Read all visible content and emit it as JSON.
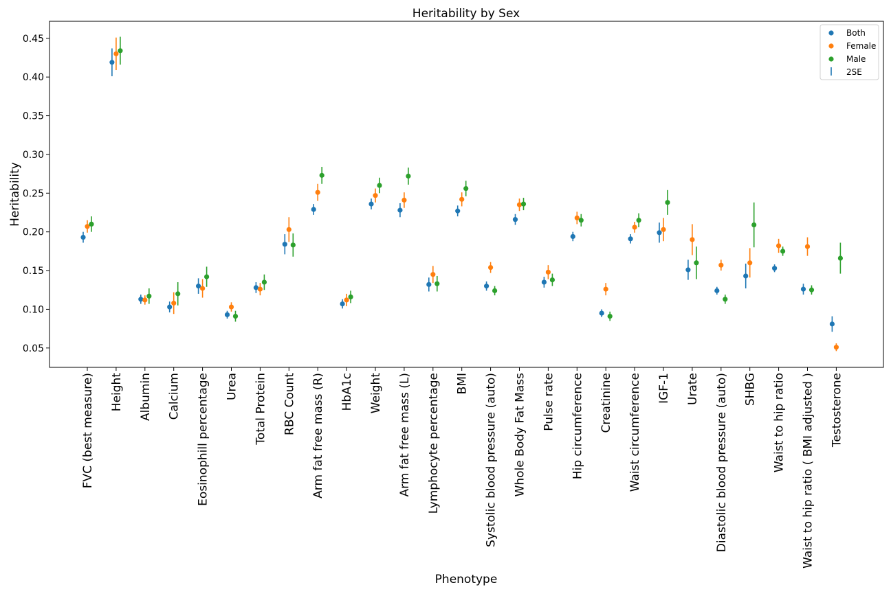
{
  "chart_data": {
    "type": "scatter",
    "title": "Heritability by Sex",
    "xlabel": "Phenotype",
    "ylabel": "Heritability",
    "ylim": [
      0.025,
      0.472
    ],
    "yticks": [
      "0.05",
      "0.10",
      "0.15",
      "0.20",
      "0.25",
      "0.30",
      "0.35",
      "0.40",
      "0.45"
    ],
    "grid": false,
    "legend_position": "top-right",
    "error_bar_legend": "2SE",
    "categories": [
      "FVC (best measure)",
      "Height",
      "Albumin",
      "Calcium",
      "Eosinophill percentage",
      "Urea",
      "Total Protein",
      "RBC Count",
      "Arm fat free mass (R)",
      "HbA1c",
      "Weight",
      "Arm fat free mass (L)",
      "Lymphocyte percentage",
      "BMI",
      "Systolic blood pressure (auto)",
      "Whole Body Fat Mass",
      "Pulse rate",
      "Hip circumference",
      "Creatinine",
      "Waist circumference",
      "IGF-1",
      "Urate",
      "Diastolic blood pressure (auto)",
      "SHBG",
      "Waist to hip ratio",
      "Waist to hip ratio ( BMI adjusted )",
      "Testosterone"
    ],
    "series": [
      {
        "name": "Both",
        "color": "#1f77b4",
        "values": [
          0.193,
          0.419,
          0.113,
          0.103,
          0.13,
          0.093,
          0.128,
          0.184,
          0.229,
          0.107,
          0.236,
          0.228,
          0.132,
          0.227,
          0.13,
          0.216,
          0.135,
          0.194,
          0.095,
          0.191,
          0.199,
          0.151,
          0.124,
          0.143,
          0.153,
          0.126,
          0.081
        ],
        "errors": [
          0.007,
          0.018,
          0.006,
          0.007,
          0.01,
          0.005,
          0.007,
          0.013,
          0.007,
          0.006,
          0.007,
          0.009,
          0.009,
          0.007,
          0.006,
          0.007,
          0.007,
          0.006,
          0.005,
          0.006,
          0.013,
          0.013,
          0.005,
          0.016,
          0.005,
          0.007,
          0.01
        ]
      },
      {
        "name": "Female",
        "color": "#ff7f0e",
        "values": [
          0.207,
          0.43,
          0.112,
          0.108,
          0.127,
          0.103,
          0.126,
          0.203,
          0.251,
          0.112,
          0.247,
          0.241,
          0.145,
          0.242,
          0.154,
          0.235,
          0.148,
          0.218,
          0.126,
          0.206,
          0.203,
          0.19,
          0.157,
          0.16,
          0.182,
          0.181,
          0.051
        ],
        "errors": [
          0.008,
          0.021,
          0.006,
          0.014,
          0.012,
          0.006,
          0.008,
          0.016,
          0.011,
          0.008,
          0.009,
          0.01,
          0.011,
          0.009,
          0.007,
          0.008,
          0.009,
          0.008,
          0.008,
          0.007,
          0.015,
          0.02,
          0.007,
          0.019,
          0.009,
          0.012,
          0.005
        ]
      },
      {
        "name": "Male",
        "color": "#2ca02c",
        "values": [
          0.21,
          0.434,
          0.117,
          0.12,
          0.142,
          0.091,
          0.135,
          0.183,
          0.273,
          0.116,
          0.26,
          0.272,
          0.133,
          0.256,
          0.124,
          0.236,
          0.138,
          0.215,
          0.091,
          0.215,
          0.238,
          0.16,
          0.113,
          0.209,
          0.175,
          0.125,
          0.166
        ],
        "errors": [
          0.01,
          0.018,
          0.01,
          0.015,
          0.013,
          0.007,
          0.01,
          0.015,
          0.011,
          0.008,
          0.01,
          0.011,
          0.01,
          0.01,
          0.006,
          0.008,
          0.008,
          0.008,
          0.006,
          0.009,
          0.016,
          0.021,
          0.006,
          0.029,
          0.006,
          0.006,
          0.02
        ]
      }
    ]
  }
}
